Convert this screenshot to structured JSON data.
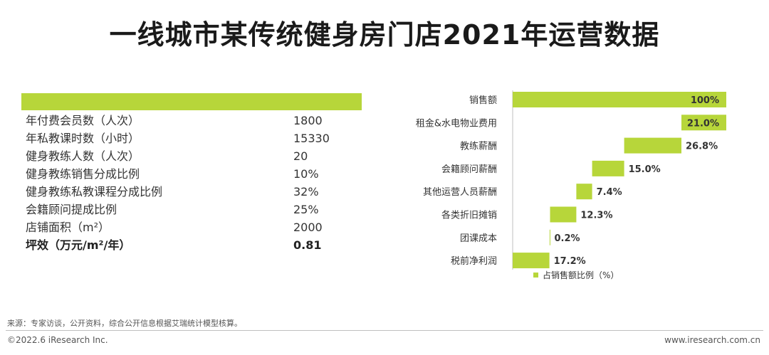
{
  "title": "一线城市某传统健身房门店2021年运营数据",
  "table": {
    "rows": [
      {
        "label": "年付费会员数（人次）",
        "value": "1800"
      },
      {
        "label": "年私教课时数（小时）",
        "value": "15330"
      },
      {
        "label": "健身教练人数（人次）",
        "value": "20"
      },
      {
        "label": "健身教练销售分成比例",
        "value": "10%"
      },
      {
        "label": "健身教练私教课程分成比例",
        "value": "32%"
      },
      {
        "label": "会籍顾问提成比例",
        "value": "25%"
      },
      {
        "label": "店铺面积（m²）",
        "value": "2000"
      },
      {
        "label": "坪效（万元/m²/年）",
        "value": "0.81",
        "bold": true
      }
    ]
  },
  "chart_data": {
    "type": "bar",
    "subtype": "waterfall",
    "unit": "%",
    "categories": [
      "销售额",
      "租金&水电物业费用",
      "教练薪酬",
      "会籍顾问薪酬",
      "其他运营人员薪酬",
      "各类折旧摊销",
      "团课成本",
      "税前净利润"
    ],
    "values": [
      100,
      21.0,
      26.8,
      15.0,
      7.4,
      12.3,
      0.2,
      17.2
    ],
    "value_labels": [
      "100%",
      "21.0%",
      "26.8%",
      "15.0%",
      "7.4%",
      "12.3%",
      "0.2%",
      "17.2%"
    ],
    "legend": "占销售额比例（%）",
    "bar_color": "#b7d63a",
    "label_color": "#333333"
  },
  "footer": {
    "source": "来源：专家访谈，公开资料，综合公开信息根据艾瑞统计模型核算。",
    "copyright": "©2022.6 iResearch Inc.",
    "website": "www.iresearch.com.cn"
  }
}
